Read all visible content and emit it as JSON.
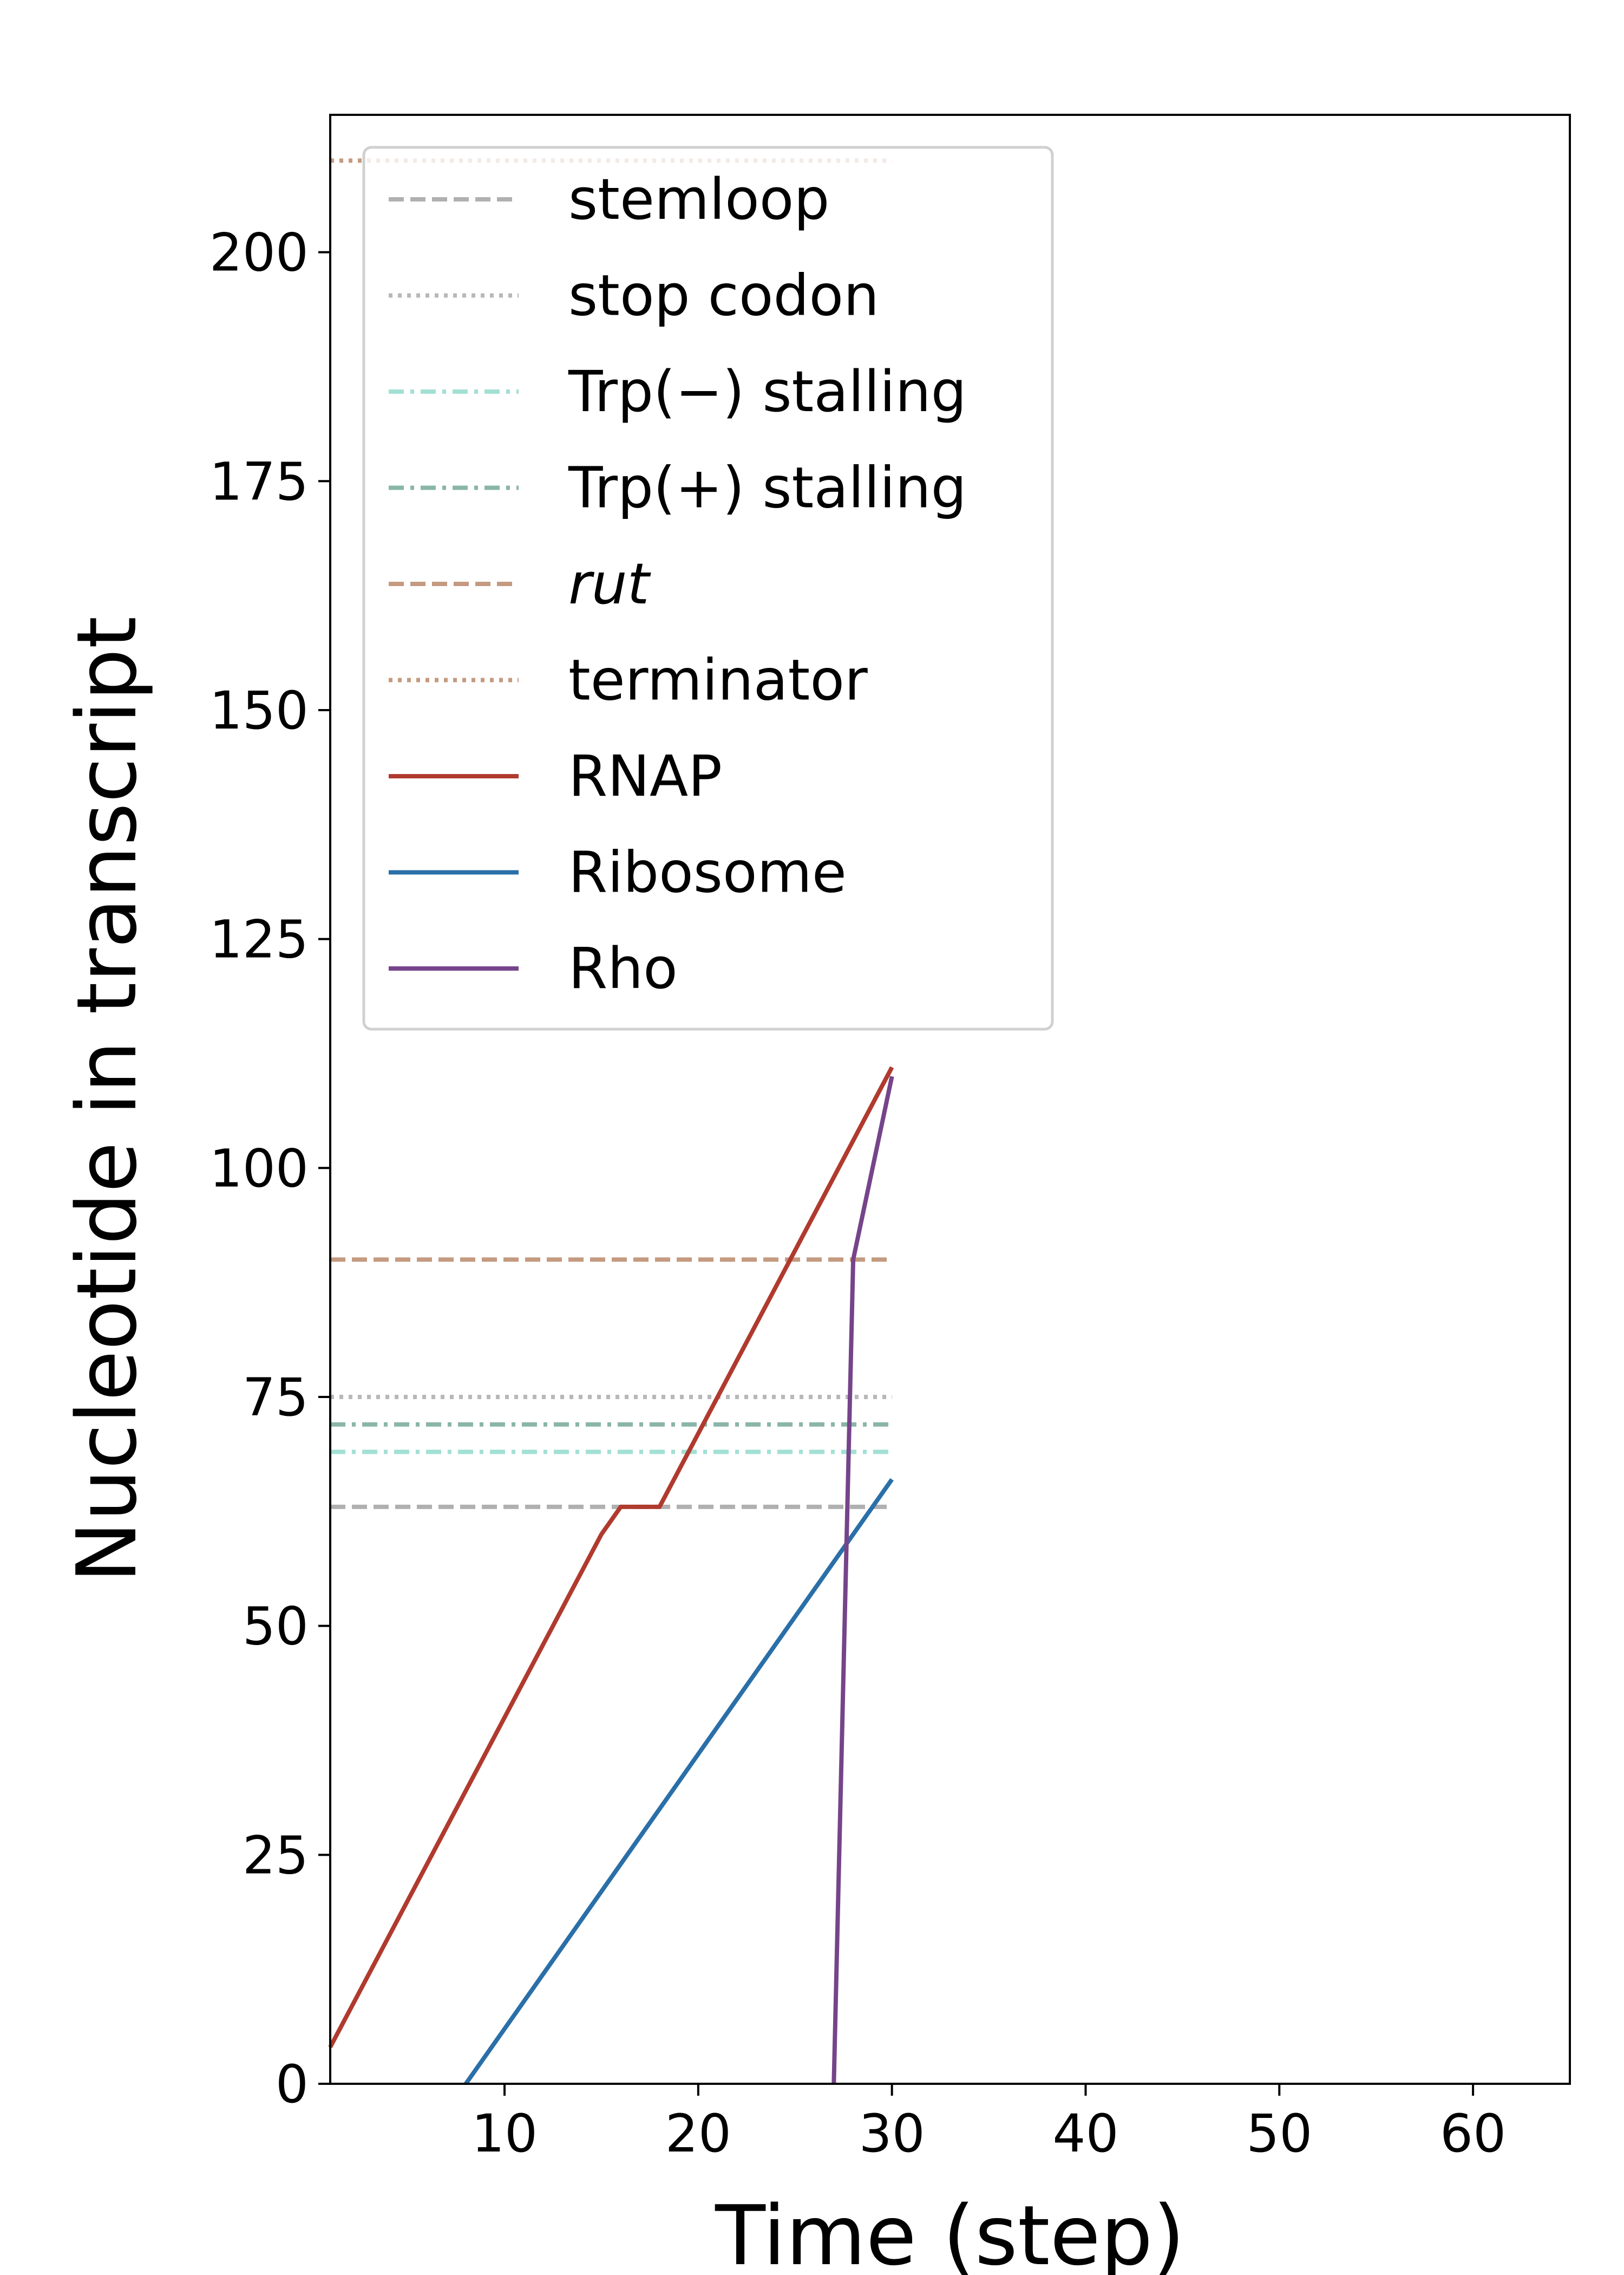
{
  "chart_data": {
    "type": "line",
    "xlabel": "Time (step)",
    "ylabel": "Nucleotide in transcript",
    "xlim": [
      1,
      65
    ],
    "ylim": [
      0,
      215
    ],
    "xticks": [
      10,
      20,
      30,
      40,
      50,
      60
    ],
    "yticks": [
      0,
      25,
      50,
      75,
      100,
      125,
      150,
      175,
      200
    ],
    "grid": false,
    "legend_position": "top-left",
    "reference_lines": [
      {
        "name": "stemloop",
        "y": 63,
        "x_range": [
          1,
          30
        ],
        "color": "#b0b0b0",
        "style": "dashed",
        "italic": false
      },
      {
        "name": "stop codon",
        "y": 75,
        "x_range": [
          1,
          30
        ],
        "color": "#b8b8b8",
        "style": "dotted",
        "italic": false
      },
      {
        "name": "Trp(−) stalling",
        "y": 69,
        "x_range": [
          1,
          30
        ],
        "color": "#a3e0d4",
        "style": "dashdot",
        "italic": false
      },
      {
        "name": "Trp(+) stalling",
        "y": 72,
        "x_range": [
          1,
          30
        ],
        "color": "#8ab5a8",
        "style": "dashdot",
        "italic": false
      },
      {
        "name": "rut",
        "y": 90,
        "x_range": [
          1,
          30
        ],
        "color": "#c49a80",
        "style": "dashed",
        "italic": true
      },
      {
        "name": "terminator",
        "y": 210,
        "x_range": [
          1,
          30
        ],
        "color": "#c49a80",
        "style": "dotted",
        "italic": false
      }
    ],
    "series": [
      {
        "name": "RNAP",
        "color": "#b03a2e",
        "points": [
          [
            1,
            4
          ],
          [
            15,
            60
          ],
          [
            16,
            63
          ],
          [
            18,
            63
          ],
          [
            30,
            111
          ]
        ]
      },
      {
        "name": "Ribosome",
        "color": "#2a6fa8",
        "points": [
          [
            8,
            0
          ],
          [
            30,
            66
          ]
        ]
      },
      {
        "name": "Rho",
        "color": "#76448a",
        "points": [
          [
            27,
            0
          ],
          [
            28,
            90
          ],
          [
            30,
            110
          ]
        ]
      }
    ]
  }
}
